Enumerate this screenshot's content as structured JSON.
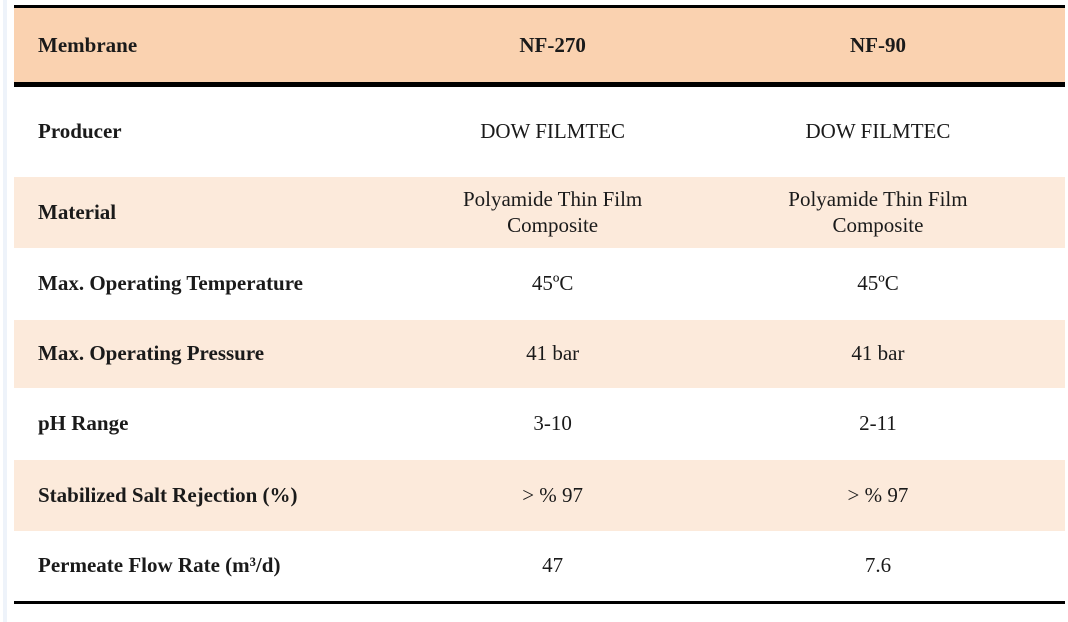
{
  "table": {
    "header": {
      "label": "Membrane",
      "nf270": "NF-270",
      "nf90": "NF-90"
    },
    "rows": [
      {
        "label": "Producer",
        "nf270": "DOW FILMTEC",
        "nf90": "DOW FILMTEC"
      },
      {
        "label": "Material",
        "nf270": "Polyamide Thin Film Composite",
        "nf90": "Polyamide Thin Film Composite"
      },
      {
        "label": "Max. Operating Temperature",
        "nf270": "45ºC",
        "nf90": "45ºC"
      },
      {
        "label": "Max. Operating Pressure",
        "nf270": "41 bar",
        "nf90": "41 bar"
      },
      {
        "label": "pH Range",
        "nf270": "3-10",
        "nf90": "2-11"
      },
      {
        "label": "Stabilized Salt Rejection (%)",
        "nf270": "> % 97",
        "nf90": "> % 97"
      },
      {
        "label": "Permeate Flow Rate (m³/d)",
        "nf270": "47",
        "nf90": "7.6"
      }
    ],
    "colors": {
      "header_bg": "#fad2b0",
      "stripe_bg": "#fceadb",
      "border": "#000000",
      "text": "#1a1a1a"
    }
  }
}
